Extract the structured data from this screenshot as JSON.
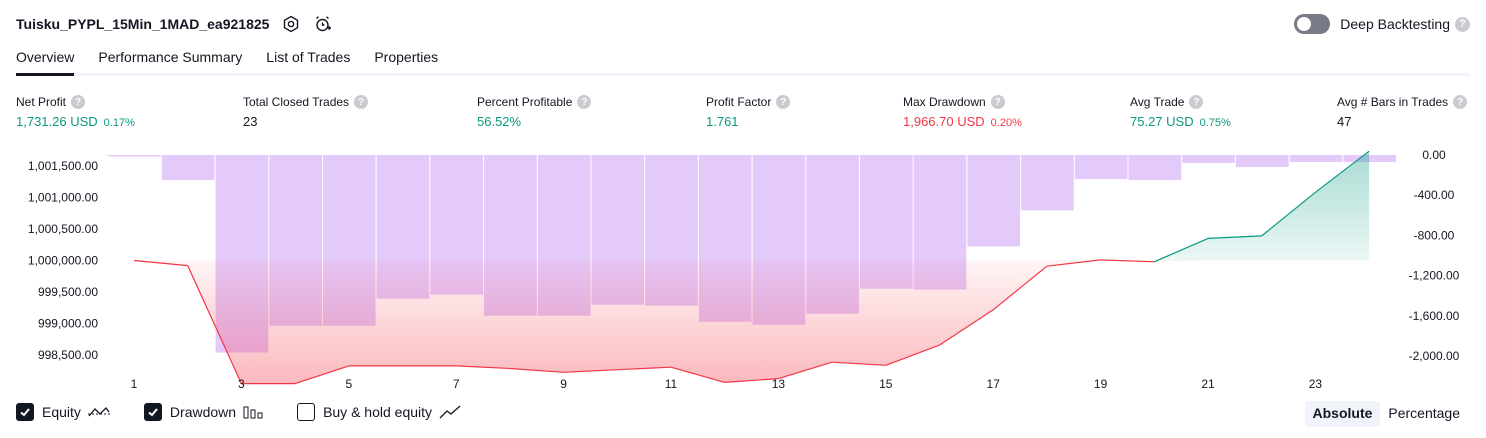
{
  "header": {
    "title": "Tuisku_PYPL_15Min_1MAD_ea921825",
    "deep_backtesting_label": "Deep Backtesting",
    "help_glyph": "?"
  },
  "tabs": [
    {
      "label": "Overview",
      "active": true
    },
    {
      "label": "Performance Summary",
      "active": false
    },
    {
      "label": "List of Trades",
      "active": false
    },
    {
      "label": "Properties",
      "active": false
    }
  ],
  "metrics": {
    "net_profit": {
      "label": "Net Profit",
      "value": "1,731.26 USD",
      "pct": "0.17%"
    },
    "total_closed_trades": {
      "label": "Total Closed Trades",
      "value": "23"
    },
    "percent_profitable": {
      "label": "Percent Profitable",
      "value": "56.52%"
    },
    "profit_factor": {
      "label": "Profit Factor",
      "value": "1.761"
    },
    "max_drawdown": {
      "label": "Max Drawdown",
      "value": "1,966.70 USD",
      "pct": "0.20%"
    },
    "avg_trade": {
      "label": "Avg Trade",
      "value": "75.27 USD",
      "pct": "0.75%"
    },
    "avg_bars": {
      "label": "Avg # Bars in Trades",
      "value": "47"
    }
  },
  "colors": {
    "green": "#089981",
    "red": "#f23645",
    "drawdown_bar": "#e1c4fb",
    "equity_loss_fill": "#fbc7c7",
    "equity_gain_fill": "#cdeee4"
  },
  "chart_data": {
    "type": "area",
    "x_ticks": [
      "1",
      "3",
      "5",
      "7",
      "9",
      "11",
      "13",
      "15",
      "17",
      "19",
      "21",
      "23"
    ],
    "y_left_ticks": [
      "1,001,500.00",
      "1,001,000.00",
      "1,000,500.00",
      "1,000,000.00",
      "999,500.00",
      "999,000.00",
      "998,500.00"
    ],
    "y_right_ticks": [
      "0.00",
      "-400.00",
      "-800.00",
      "-1,200.00",
      "-1,600.00",
      "-2,000.00"
    ],
    "y_left_range": [
      998250,
      1001750
    ],
    "y_right_range": [
      -2150,
      50
    ],
    "series": [
      {
        "name": "Equity",
        "x": [
          1,
          2,
          3,
          4,
          5,
          6,
          7,
          8,
          9,
          10,
          11,
          12,
          13,
          14,
          15,
          16,
          17,
          18,
          19,
          20,
          21,
          22,
          23,
          24
        ],
        "values": [
          1000000,
          999920,
          998050,
          998050,
          998330,
          998330,
          998330,
          998290,
          998230,
          998270,
          998310,
          998070,
          998130,
          998390,
          998340,
          998660,
          999220,
          999910,
          1000010,
          999980,
          1000350,
          1000390,
          1001080,
          1001731.26
        ]
      },
      {
        "name": "Drawdown",
        "x": [
          1,
          2,
          3,
          4,
          5,
          6,
          7,
          8,
          9,
          10,
          11,
          12,
          13,
          14,
          15,
          16,
          17,
          18,
          19,
          20,
          21,
          22,
          23,
          24
        ],
        "values": [
          0,
          -250,
          -1966.7,
          -1700,
          -1700,
          -1430,
          -1390,
          -1600,
          -1600,
          -1490,
          -1500,
          -1660,
          -1690,
          -1580,
          -1330,
          -1340,
          -910,
          -550,
          -240,
          -250,
          -80,
          -120,
          -70,
          -70
        ]
      }
    ]
  },
  "legend": {
    "equity": "Equity",
    "drawdown": "Drawdown",
    "buy_hold": "Buy & hold equity"
  },
  "mode": {
    "absolute": "Absolute",
    "percentage": "Percentage"
  }
}
